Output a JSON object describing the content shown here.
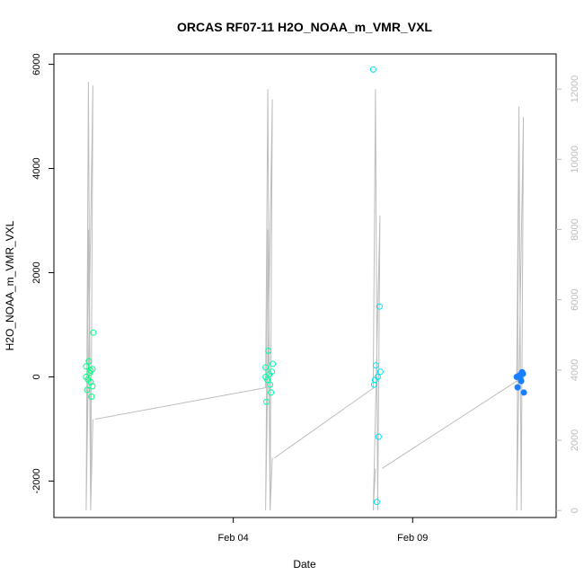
{
  "chart_data": {
    "type": "scatter",
    "title": "ORCAS RF07-11 H2O_NOAA_m_VMR_VXL",
    "xlabel": "Date",
    "ylabel": "H2O_NOAA_m_VMR_VXL",
    "x_ticks": [
      "Feb 04",
      "Feb 09"
    ],
    "x_range": [
      "2016-01-30",
      "2016-02-13"
    ],
    "ylim": [
      -2700,
      6200
    ],
    "y_ticks": [
      -2000,
      0,
      2000,
      4000,
      6000
    ],
    "y2lim": [
      -200,
      13000
    ],
    "y2_ticks": [
      0,
      2000,
      4000,
      6000,
      8000,
      10000,
      12000
    ],
    "grid": false,
    "series": [
      {
        "color": "#00ff88",
        "points": [
          {
            "x": "2016-01-31",
            "y": 0
          },
          {
            "x": "2016-01-31",
            "y": 150
          },
          {
            "x": "2016-01-31",
            "y": -100
          },
          {
            "x": "2016-01-31",
            "y": 300
          },
          {
            "x": "2016-01-31",
            "y": -250
          },
          {
            "x": "2016-01-31",
            "y": 850
          },
          {
            "x": "2016-01-31",
            "y": -380
          },
          {
            "x": "2016-01-31",
            "y": 80
          },
          {
            "x": "2016-01-31",
            "y": -50
          },
          {
            "x": "2016-01-31",
            "y": 200
          },
          {
            "x": "2016-01-31",
            "y": -180
          },
          {
            "x": "2016-01-31",
            "y": 120
          }
        ]
      },
      {
        "color": "#00ffaa",
        "points": [
          {
            "x": "2016-02-05",
            "y": 0
          },
          {
            "x": "2016-02-05",
            "y": 100
          },
          {
            "x": "2016-02-05",
            "y": -150
          },
          {
            "x": "2016-02-05",
            "y": 500
          },
          {
            "x": "2016-02-05",
            "y": -480
          },
          {
            "x": "2016-02-05",
            "y": 250
          },
          {
            "x": "2016-02-05",
            "y": -300
          },
          {
            "x": "2016-02-05",
            "y": 50
          },
          {
            "x": "2016-02-05",
            "y": -60
          },
          {
            "x": "2016-02-05",
            "y": 180
          }
        ]
      },
      {
        "color": "#00e5ee",
        "points": [
          {
            "x": "2016-02-08",
            "y": 5900
          },
          {
            "x": "2016-02-08",
            "y": 1350
          },
          {
            "x": "2016-02-08",
            "y": 0
          },
          {
            "x": "2016-02-08",
            "y": 220
          },
          {
            "x": "2016-02-08",
            "y": -150
          },
          {
            "x": "2016-02-08",
            "y": 100
          },
          {
            "x": "2016-02-08",
            "y": -1150
          },
          {
            "x": "2016-02-08",
            "y": -2400
          },
          {
            "x": "2016-02-08",
            "y": -60
          }
        ]
      },
      {
        "color": "#1a7fff",
        "points": [
          {
            "x": "2016-02-12",
            "y": 0
          },
          {
            "x": "2016-02-12",
            "y": 60
          },
          {
            "x": "2016-02-12",
            "y": -80
          },
          {
            "x": "2016-02-12",
            "y": 30
          },
          {
            "x": "2016-02-12",
            "y": -200
          },
          {
            "x": "2016-02-12",
            "y": -300
          },
          {
            "x": "2016-02-12",
            "y": 90
          },
          {
            "x": "2016-02-12",
            "y": -20
          }
        ]
      }
    ],
    "secondary_series": {
      "color": "#bdbdbd",
      "type": "line",
      "segments": [
        {
          "x": "2016-01-31",
          "y": [
            0,
            12200,
            0,
            12100,
            0,
            8000,
            0,
            2600
          ]
        },
        {
          "x": "2016-02-05",
          "y": [
            3500,
            12000,
            0,
            11700,
            0,
            8000,
            0,
            1500
          ]
        },
        {
          "x": "2016-02-08",
          "y": [
            3500,
            12000,
            0,
            8400,
            0,
            1200
          ]
        },
        {
          "x": "2016-02-12",
          "y": [
            3700,
            11500,
            0,
            11200,
            0,
            10500
          ]
        }
      ],
      "connectors": [
        {
          "from": {
            "x": "2016-01-31",
            "y": 2600
          },
          "to": {
            "x": "2016-02-05",
            "y": 3500
          }
        },
        {
          "from": {
            "x": "2016-02-05",
            "y": 1500
          },
          "to": {
            "x": "2016-02-08",
            "y": 3500
          }
        },
        {
          "from": {
            "x": "2016-02-08",
            "y": 1200
          },
          "to": {
            "x": "2016-02-12",
            "y": 3700
          }
        }
      ]
    }
  }
}
